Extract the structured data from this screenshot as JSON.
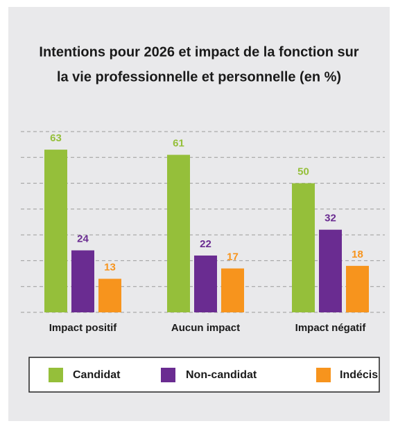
{
  "chart_data": {
    "type": "bar",
    "title": [
      "Intentions pour 2026 et impact de la fonction sur",
      "la vie professionnelle et personnelle (en %)"
    ],
    "categories": [
      "Impact positif",
      "Aucun impact",
      "Impact négatif"
    ],
    "series": [
      {
        "name": "Candidat",
        "color": "#95bf3a",
        "values": [
          63,
          61,
          50
        ]
      },
      {
        "name": "Non-candidat",
        "color": "#6a2c91",
        "values": [
          24,
          22,
          32
        ]
      },
      {
        "name": "Indécis",
        "color": "#f7941d",
        "values": [
          13,
          17,
          18
        ]
      }
    ],
    "ylim": [
      0,
      70
    ],
    "yticks": [
      0,
      10,
      20,
      30,
      40,
      50,
      60,
      70
    ],
    "grid": true,
    "legend": "bottom"
  }
}
